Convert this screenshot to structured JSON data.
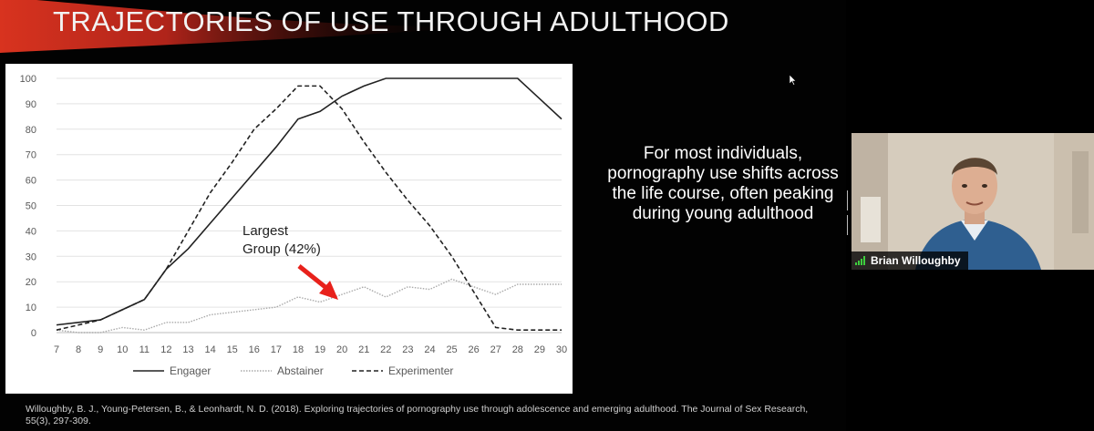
{
  "slide": {
    "title": "TRAJECTORIES OF USE THROUGH ADULTHOOD",
    "side_text": "For most individuals, pornography use shifts across the life course, often peaking during young adulthood",
    "citation": "Willoughby, B. J., Young-Petersen, B., & Leonhardt, N. D. (2018). Exploring trajectories of pornography use through adolescence and emerging adulthood. The Journal of Sex Research, 55(3), 297-309.",
    "annotation": {
      "line1": "Largest",
      "line2": "Group (42%)",
      "arrow_color": "#e8211b"
    },
    "title_banner_color": "#c8261b"
  },
  "chart_data": {
    "type": "line",
    "x": [
      7,
      8,
      9,
      10,
      11,
      12,
      13,
      14,
      15,
      16,
      17,
      18,
      19,
      20,
      21,
      22,
      23,
      24,
      25,
      26,
      27,
      28,
      29,
      30
    ],
    "ylim": [
      0,
      100
    ],
    "yticks": [
      0,
      10,
      20,
      30,
      40,
      50,
      60,
      70,
      80,
      90,
      100
    ],
    "grid": true,
    "legend_position": "bottom",
    "series": [
      {
        "name": "Engager",
        "style": "solid",
        "color": "#222222",
        "values": [
          3,
          4,
          5,
          9,
          13,
          25,
          33,
          43,
          53,
          63,
          73,
          84,
          87,
          93,
          97,
          100,
          100,
          100,
          100,
          100,
          100,
          100,
          92,
          84
        ]
      },
      {
        "name": "Abstainer",
        "style": "dotted",
        "color": "#aaaaaa",
        "values": [
          1,
          0,
          0,
          2,
          1,
          4,
          4,
          7,
          8,
          9,
          10,
          14,
          12,
          15,
          18,
          14,
          18,
          17,
          21,
          18,
          15,
          19,
          19,
          19
        ]
      },
      {
        "name": "Experimenter",
        "style": "dashed",
        "color": "#222222",
        "values": [
          1,
          3,
          5,
          9,
          13,
          25,
          40,
          55,
          67,
          80,
          88,
          97,
          97,
          88,
          75,
          63,
          52,
          42,
          30,
          16,
          2,
          1,
          1,
          1
        ]
      }
    ]
  },
  "video": {
    "participant_name": "Brian Willoughby",
    "signal_icon": "signal-bars-icon"
  }
}
